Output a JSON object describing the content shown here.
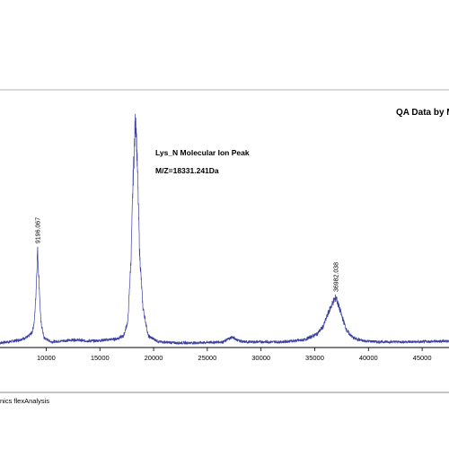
{
  "chart_data": {
    "type": "line",
    "title": "QA Data by M",
    "annotations": {
      "molecule": "Lys_N  Molecular Ion Peak",
      "mz": "M/Z=18331.241Da"
    },
    "footer": "nics flexAnalysis",
    "xlim": [
      5700,
      47500
    ],
    "x_ticks": [
      10000,
      15000,
      20000,
      25000,
      30000,
      35000,
      40000,
      45000
    ],
    "tick_labels": [
      "10000",
      "15000",
      "20000",
      "25000",
      "30000",
      "35000",
      "40000",
      "45000"
    ],
    "peak_labels": [
      {
        "x": 9196.067,
        "text": "9196.067"
      },
      {
        "x": 36982.038,
        "text": "36982.038"
      }
    ],
    "line_color": "#3a3fa0",
    "series": [
      {
        "values_note": "",
        "x": [
          5700,
          6500,
          7500,
          8300,
          8700,
          8900,
          9050,
          9196,
          9350,
          9500,
          9800,
          10500,
          11500,
          12500,
          13000,
          13500,
          14500,
          15500,
          16500,
          17200,
          17600,
          17900,
          18100,
          18331,
          18500,
          18700,
          19000,
          19500,
          20500,
          22000,
          24000,
          26500,
          27300,
          27800,
          28300,
          30000,
          32000,
          34000,
          35200,
          35800,
          36300,
          36700,
          36982,
          37200,
          37600,
          38000,
          38600,
          39500,
          41000,
          43000,
          45000,
          47500
        ],
        "y": [
          3,
          4,
          6,
          9,
          14,
          25,
          55,
          100,
          62,
          25,
          8,
          4,
          5,
          6,
          6,
          5,
          5,
          6,
          7,
          10,
          25,
          90,
          175,
          240,
          180,
          95,
          40,
          10,
          4,
          3,
          3,
          4,
          9,
          6,
          4,
          4,
          4,
          6,
          12,
          20,
          35,
          45,
          50,
          42,
          28,
          15,
          8,
          5,
          4,
          4,
          4,
          5
        ]
      }
    ]
  }
}
